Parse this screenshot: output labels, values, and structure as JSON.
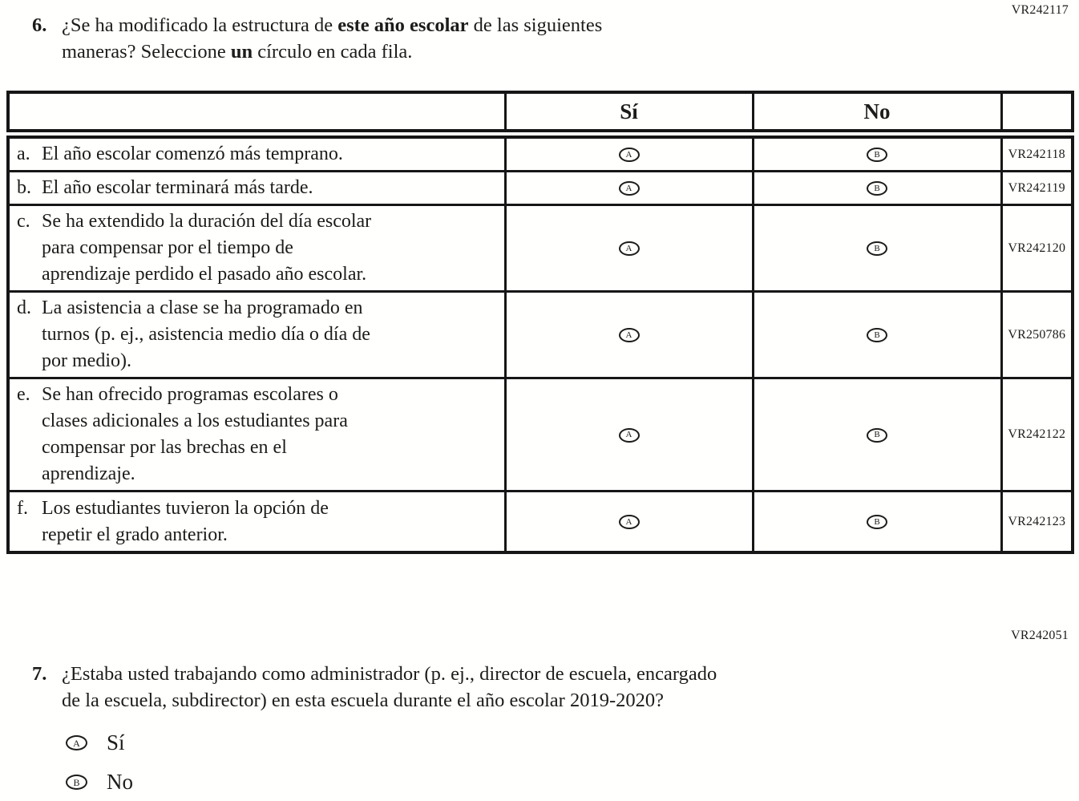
{
  "page": {
    "code_top_right": "VR242117",
    "code_mid_right": "VR242051"
  },
  "q6": {
    "number": "6.",
    "line1_pre": "¿Se ha modificado la estructura de ",
    "line1_bold": "este año escolar",
    "line1_post": " de las siguientes",
    "line2_pre": "maneras? Seleccione ",
    "line2_bold": "un",
    "line2_post": " círculo en cada fila.",
    "table": {
      "headers": {
        "yes": "Sí",
        "no": "No"
      },
      "option_a": "A",
      "option_b": "B",
      "rows": [
        {
          "letter": "a.",
          "lines": [
            "El año escolar comenzó más temprano."
          ],
          "code": "VR242118"
        },
        {
          "letter": "b.",
          "lines": [
            "El año escolar terminará más tarde."
          ],
          "code": "VR242119"
        },
        {
          "letter": "c.",
          "lines": [
            "Se ha extendido la duración del día escolar",
            "para compensar por el tiempo de",
            "aprendizaje perdido el pasado año escolar."
          ],
          "code": "VR242120"
        },
        {
          "letter": "d.",
          "lines": [
            "La asistencia a clase se ha programado en",
            "turnos (p. ej., asistencia medio día o día de",
            "por medio)."
          ],
          "code": "VR250786"
        },
        {
          "letter": "e.",
          "lines": [
            "Se han ofrecido programas escolares o",
            "clases adicionales a los estudiantes para",
            "compensar por las brechas en el",
            "aprendizaje."
          ],
          "code": "VR242122"
        },
        {
          "letter": "f.",
          "lines": [
            "Los estudiantes tuvieron la opción de",
            "repetir el grado anterior."
          ],
          "code": "VR242123"
        }
      ]
    }
  },
  "q7": {
    "number": "7.",
    "line1": "¿Estaba usted trabajando como administrador (p. ej., director de escuela, encargado",
    "line2": "de la escuela, subdirector) en esta escuela durante el año escolar 2019-2020?",
    "options": [
      {
        "letter": "A",
        "label": "Sí"
      },
      {
        "letter": "B",
        "label": "No"
      }
    ]
  }
}
